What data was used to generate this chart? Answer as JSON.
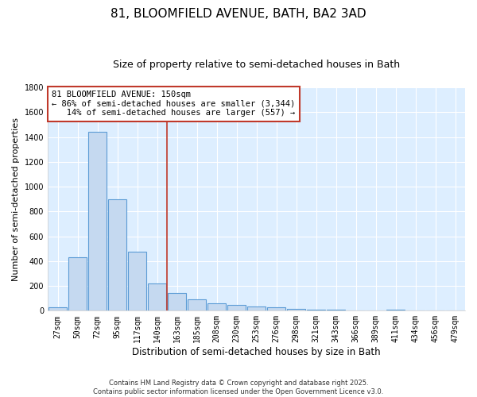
{
  "title": "81, BLOOMFIELD AVENUE, BATH, BA2 3AD",
  "subtitle": "Size of property relative to semi-detached houses in Bath",
  "xlabel": "Distribution of semi-detached houses by size in Bath",
  "ylabel": "Number of semi-detached properties",
  "categories": [
    "27sqm",
    "50sqm",
    "72sqm",
    "95sqm",
    "117sqm",
    "140sqm",
    "163sqm",
    "185sqm",
    "208sqm",
    "230sqm",
    "253sqm",
    "276sqm",
    "298sqm",
    "321sqm",
    "343sqm",
    "366sqm",
    "389sqm",
    "411sqm",
    "434sqm",
    "456sqm",
    "479sqm"
  ],
  "values": [
    28,
    428,
    1440,
    900,
    475,
    220,
    140,
    90,
    58,
    45,
    35,
    25,
    18,
    10,
    7,
    5,
    3,
    10,
    3,
    1,
    3
  ],
  "bar_color": "#c5d9f0",
  "bar_edge_color": "#5b9bd5",
  "plot_bg_color": "#ddeeff",
  "fig_bg_color": "#ffffff",
  "grid_color": "#ffffff",
  "vline_x": 5.5,
  "vline_color": "#c0392b",
  "annotation_text": "81 BLOOMFIELD AVENUE: 150sqm\n← 86% of semi-detached houses are smaller (3,344)\n   14% of semi-detached houses are larger (557) →",
  "annotation_box_color": "#ffffff",
  "annotation_box_edge": "#c0392b",
  "ylim": [
    0,
    1800
  ],
  "yticks": [
    0,
    200,
    400,
    600,
    800,
    1000,
    1200,
    1400,
    1600,
    1800
  ],
  "footnote": "Contains HM Land Registry data © Crown copyright and database right 2025.\nContains public sector information licensed under the Open Government Licence v3.0.",
  "title_fontsize": 11,
  "subtitle_fontsize": 9,
  "tick_fontsize": 7,
  "ylabel_fontsize": 8,
  "xlabel_fontsize": 8.5,
  "annotation_fontsize": 7.5,
  "footnote_fontsize": 6
}
